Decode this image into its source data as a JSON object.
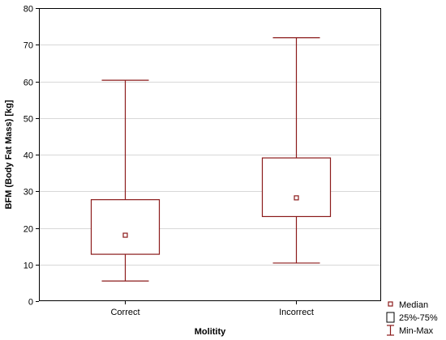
{
  "chart_data": {
    "type": "box",
    "title": "",
    "xlabel": "Molitity",
    "ylabel": "BFM (Body Fat Mass) [kg]",
    "ylim": [
      0,
      80
    ],
    "yticks": [
      0,
      10,
      20,
      30,
      40,
      50,
      60,
      70,
      80
    ],
    "grid": true,
    "categories": [
      "Correct",
      "Incorrect"
    ],
    "boxes": [
      {
        "category": "Correct",
        "min": 5.5,
        "q1": 12.8,
        "median": 18.0,
        "q3": 27.7,
        "max": 60.3
      },
      {
        "category": "Incorrect",
        "min": 10.4,
        "q1": 23.1,
        "median": 28.2,
        "q3": 39.1,
        "max": 71.9
      }
    ],
    "legend": {
      "position": "bottom-right",
      "entries": [
        {
          "label": "Median",
          "symbol": "small-square"
        },
        {
          "label": "25%-75%",
          "symbol": "box"
        },
        {
          "label": "Min-Max",
          "symbol": "whisker"
        }
      ]
    },
    "colors": {
      "box": "#8b1a1a",
      "grid": "#d8d8d8",
      "axis": "#000000"
    }
  }
}
